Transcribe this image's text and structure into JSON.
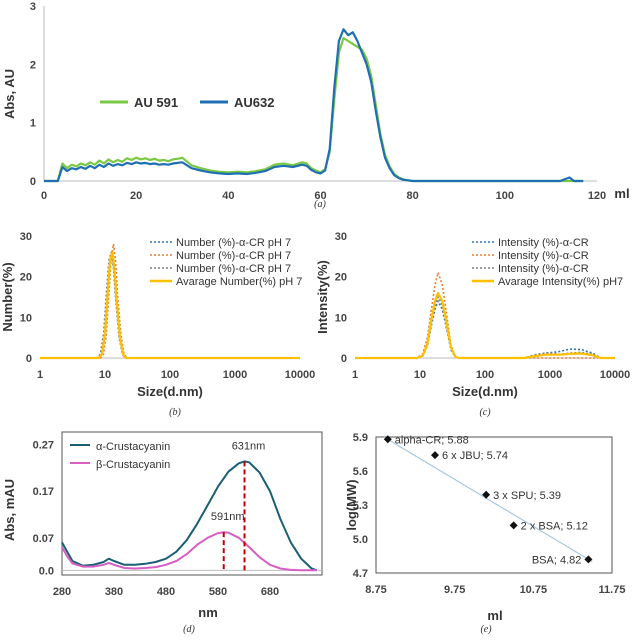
{
  "chart_data": [
    {
      "panel": "a",
      "type": "line",
      "caption": "(a)",
      "ylabel": "Abs, AU",
      "xlabel": "ml",
      "xlim": [
        0,
        120
      ],
      "ylim": [
        0,
        3
      ],
      "xticks": [
        "0",
        "20",
        "40",
        "60",
        "80",
        "100",
        "120"
      ],
      "yticks": [
        "0",
        "1",
        "2",
        "3"
      ],
      "legend": "upper-left",
      "series": [
        {
          "name": "AU 591",
          "color": "#7ac943",
          "x": [
            0,
            3,
            4,
            5,
            6,
            7,
            8,
            9,
            10,
            11,
            12,
            13,
            14,
            15,
            16,
            17,
            18,
            19,
            20,
            21,
            22,
            23,
            24,
            25,
            26,
            27,
            28,
            29,
            30,
            32,
            34,
            36,
            38,
            40,
            42,
            44,
            46,
            48,
            50,
            52,
            54,
            56,
            57,
            58,
            59,
            60,
            61,
            62,
            63,
            64,
            65,
            66,
            67,
            68,
            69,
            70,
            71,
            72,
            73,
            74,
            75,
            76,
            77,
            78,
            79,
            80,
            85,
            90,
            95,
            100,
            105,
            110,
            112,
            115,
            117
          ],
          "y": [
            0.0,
            0.0,
            0.3,
            0.22,
            0.28,
            0.25,
            0.3,
            0.27,
            0.32,
            0.28,
            0.35,
            0.3,
            0.37,
            0.32,
            0.36,
            0.33,
            0.39,
            0.36,
            0.4,
            0.37,
            0.39,
            0.36,
            0.38,
            0.35,
            0.36,
            0.34,
            0.37,
            0.38,
            0.4,
            0.27,
            0.22,
            0.18,
            0.16,
            0.15,
            0.16,
            0.15,
            0.17,
            0.2,
            0.28,
            0.3,
            0.27,
            0.32,
            0.3,
            0.22,
            0.18,
            0.15,
            0.2,
            0.5,
            1.4,
            2.2,
            2.45,
            2.4,
            2.35,
            2.3,
            2.25,
            2.1,
            1.8,
            1.3,
            0.8,
            0.45,
            0.25,
            0.12,
            0.06,
            0.03,
            0.01,
            0.0,
            0.0,
            0.0,
            0.0,
            0.0,
            0.0,
            0.0,
            0.0,
            0.0,
            0.0
          ]
        },
        {
          "name": "AU632",
          "color": "#1f6fb2",
          "x": [
            0,
            3,
            4,
            5,
            6,
            7,
            8,
            9,
            10,
            11,
            12,
            13,
            14,
            15,
            16,
            17,
            18,
            19,
            20,
            21,
            22,
            23,
            24,
            25,
            26,
            27,
            28,
            29,
            30,
            32,
            34,
            36,
            38,
            40,
            42,
            44,
            46,
            48,
            50,
            52,
            54,
            56,
            57,
            58,
            59,
            60,
            61,
            62,
            63,
            64,
            65,
            66,
            67,
            68,
            69,
            70,
            71,
            72,
            73,
            74,
            75,
            76,
            77,
            78,
            79,
            80,
            85,
            90,
            95,
            100,
            105,
            110,
            112,
            114,
            115,
            117
          ],
          "y": [
            0.0,
            0.0,
            0.24,
            0.17,
            0.22,
            0.2,
            0.24,
            0.21,
            0.26,
            0.22,
            0.28,
            0.24,
            0.3,
            0.26,
            0.29,
            0.27,
            0.31,
            0.29,
            0.32,
            0.3,
            0.31,
            0.29,
            0.3,
            0.28,
            0.29,
            0.28,
            0.3,
            0.31,
            0.32,
            0.22,
            0.18,
            0.15,
            0.13,
            0.12,
            0.13,
            0.12,
            0.14,
            0.17,
            0.24,
            0.26,
            0.24,
            0.28,
            0.26,
            0.19,
            0.15,
            0.13,
            0.18,
            0.55,
            1.6,
            2.4,
            2.6,
            2.5,
            2.55,
            2.4,
            2.2,
            2.0,
            1.7,
            1.2,
            0.75,
            0.4,
            0.22,
            0.1,
            0.05,
            0.02,
            0.01,
            0.0,
            0.0,
            0.0,
            0.0,
            0.0,
            0.0,
            0.0,
            0.0,
            0.06,
            0.0,
            0.0
          ]
        }
      ]
    },
    {
      "panel": "b",
      "type": "line",
      "caption": "(b)",
      "ylabel": "Number(%)",
      "xlabel": "Size(d.nm)",
      "xscale": "log",
      "xlim": [
        1,
        10000
      ],
      "ylim": [
        0,
        30
      ],
      "xticks": [
        "1",
        "10",
        "100",
        "1000",
        "10000"
      ],
      "yticks": [
        "0",
        "10",
        "20",
        "30"
      ],
      "legend": "top-right",
      "series": [
        {
          "name": "Number (%)-α-CR pH 7",
          "color": "#2e75b6",
          "dash": true,
          "x": [
            1,
            8,
            9,
            10,
            11,
            12,
            13,
            14,
            15,
            17,
            19,
            21,
            10000
          ],
          "y": [
            0,
            0,
            1,
            6,
            16,
            24,
            25,
            21,
            14,
            5,
            1,
            0,
            0
          ]
        },
        {
          "name": "Number (%)-α-CR pH 7",
          "color": "#ed7d31",
          "dash": true,
          "x": [
            1,
            8.5,
            9.5,
            10.5,
            11.5,
            12.5,
            13.5,
            14.5,
            15.5,
            17.5,
            19.5,
            22,
            10000
          ],
          "y": [
            0,
            0,
            1,
            6,
            16,
            25,
            28,
            24,
            16,
            6,
            1,
            0,
            0
          ]
        },
        {
          "name": "Number (%)-α-CR pH 7",
          "color": "#7f7f7f",
          "dash": true,
          "x": [
            1,
            7.5,
            8.5,
            9.5,
            10.5,
            11.5,
            12.5,
            13.5,
            14.5,
            16.5,
            18.5,
            20,
            10000
          ],
          "y": [
            0,
            0,
            1,
            6,
            16,
            24,
            26,
            22,
            15,
            5,
            1,
            0,
            0
          ]
        },
        {
          "name": "Avarage Number(%) pH 7",
          "color": "#ffc000",
          "dash": false,
          "x": [
            1,
            8,
            9,
            10,
            11,
            12,
            13,
            14,
            15,
            17,
            19,
            21,
            10000
          ],
          "y": [
            0,
            0,
            1,
            6,
            16,
            24,
            26,
            22,
            15,
            5,
            1,
            0,
            0
          ]
        }
      ]
    },
    {
      "panel": "c",
      "type": "line",
      "caption": "(c)",
      "ylabel": "Intensity(%)",
      "xlabel": "Size(d.nm)",
      "xscale": "log",
      "xlim": [
        1,
        10000
      ],
      "ylim": [
        0,
        30
      ],
      "xticks": [
        "1",
        "10",
        "100",
        "1000",
        "10000"
      ],
      "yticks": [
        "0",
        "10",
        "20",
        "30"
      ],
      "legend": "top-right",
      "series": [
        {
          "name": "Intensity (%)-α-CR",
          "color": "#2e75b6",
          "dash": true,
          "x": [
            1,
            9,
            11,
            13,
            15,
            17,
            19,
            22,
            25,
            30,
            35,
            40,
            400,
            600,
            900,
            1400,
            2000,
            3000,
            4500,
            6000,
            10000
          ],
          "y": [
            0,
            0,
            0.5,
            3,
            8,
            12,
            14,
            12,
            8,
            2,
            0.3,
            0,
            0,
            0.8,
            1.2,
            1.6,
            2.2,
            2.1,
            1.2,
            0,
            0
          ]
        },
        {
          "name": "Intensity (%)-α-CR",
          "color": "#ed7d31",
          "dash": true,
          "x": [
            1,
            9,
            11,
            13,
            15,
            17,
            19,
            22,
            25,
            30,
            35,
            40,
            10000
          ],
          "y": [
            0,
            0,
            1,
            5,
            12,
            18,
            21,
            18,
            12,
            3,
            0.4,
            0,
            0
          ]
        },
        {
          "name": "Intensity (%)-α-CR",
          "color": "#7f7f7f",
          "dash": true,
          "x": [
            1,
            9,
            11,
            13,
            15,
            17,
            19,
            22,
            25,
            30,
            35,
            40,
            400,
            600,
            900,
            1400,
            2000,
            3000,
            4500,
            6000,
            10000
          ],
          "y": [
            0,
            0,
            0.5,
            3,
            9,
            13,
            15,
            13,
            9,
            2.5,
            0.3,
            0,
            0,
            0.8,
            1.3,
            0.9,
            1.2,
            1.4,
            0.9,
            0,
            0
          ]
        },
        {
          "name": "Avarage Intensity(%) pH7",
          "color": "#ffc000",
          "dash": false,
          "x": [
            1,
            9,
            11,
            13,
            15,
            17,
            19,
            22,
            25,
            30,
            35,
            40,
            400,
            600,
            900,
            1400,
            2000,
            3000,
            4500,
            6000,
            10000
          ],
          "y": [
            0,
            0,
            0.6,
            3.5,
            9.5,
            14,
            16,
            14,
            9.5,
            2.5,
            0.3,
            0,
            0,
            0.5,
            0.8,
            0.8,
            1.0,
            1.1,
            0.7,
            0,
            0
          ]
        }
      ]
    },
    {
      "panel": "d",
      "type": "line",
      "caption": "(d)",
      "ylabel": "Abs, mAU",
      "xlabel": "nm",
      "xlim": [
        280,
        780
      ],
      "ylim": [
        -0.01,
        0.28
      ],
      "xticks": [
        "280",
        "380",
        "480",
        "580",
        "680"
      ],
      "yticks": [
        "0.0",
        "0.07",
        "0.17",
        "0.27"
      ],
      "legend": "top-left",
      "annotations": [
        {
          "text": "631nm",
          "x": 631,
          "y": 0.234
        },
        {
          "text": "591nm",
          "x": 591,
          "y": 0.082
        }
      ],
      "series": [
        {
          "name": "α-Crustacyanin",
          "color": "#1b5f73",
          "x": [
            280,
            290,
            300,
            320,
            340,
            360,
            370,
            380,
            400,
            420,
            440,
            460,
            480,
            500,
            520,
            540,
            560,
            580,
            600,
            620,
            631,
            640,
            660,
            680,
            700,
            720,
            740,
            760,
            770
          ],
          "y": [
            0.06,
            0.04,
            0.02,
            0.01,
            0.012,
            0.018,
            0.025,
            0.02,
            0.012,
            0.012,
            0.014,
            0.018,
            0.025,
            0.04,
            0.065,
            0.1,
            0.14,
            0.18,
            0.212,
            0.23,
            0.234,
            0.232,
            0.21,
            0.17,
            0.11,
            0.06,
            0.025,
            0.004,
            0.0
          ]
        },
        {
          "name": "β-Crustacyanin",
          "color": "#d65fc4",
          "x": [
            280,
            290,
            300,
            320,
            340,
            360,
            370,
            380,
            400,
            420,
            440,
            460,
            480,
            500,
            520,
            540,
            560,
            580,
            591,
            600,
            620,
            640,
            660,
            680,
            700,
            720,
            740,
            760,
            770
          ],
          "y": [
            0.05,
            0.03,
            0.015,
            0.008,
            0.008,
            0.012,
            0.016,
            0.012,
            0.005,
            0.004,
            0.005,
            0.007,
            0.012,
            0.02,
            0.035,
            0.055,
            0.07,
            0.08,
            0.082,
            0.081,
            0.07,
            0.05,
            0.028,
            0.012,
            0.004,
            0.001,
            0.0,
            0.0,
            0.0
          ]
        }
      ]
    },
    {
      "panel": "e",
      "type": "scatter",
      "caption": "(e)",
      "ylabel": "log(MW)",
      "xlabel": "ml",
      "xlim": [
        8.75,
        11.75
      ],
      "ylim": [
        4.7,
        5.9
      ],
      "xticks": [
        "8.75",
        "9.75",
        "10.75",
        "11.75"
      ],
      "yticks": [
        "4.7",
        "5.0",
        "5.3",
        "5.6",
        "5.9"
      ],
      "points": [
        {
          "label": "alpha-CR; 5.88",
          "x": 8.9,
          "y": 5.88
        },
        {
          "label": "6 x JBU; 5.74",
          "x": 9.5,
          "y": 5.74
        },
        {
          "label": "3 x SPU; 5.39",
          "x": 10.15,
          "y": 5.39
        },
        {
          "label": "2 x BSA; 5.12",
          "x": 10.5,
          "y": 5.12
        },
        {
          "label": "BSA; 4.82",
          "x": 11.45,
          "y": 4.82
        }
      ],
      "trendline": {
        "x": [
          8.85,
          11.5
        ],
        "y": [
          5.9,
          4.8
        ],
        "color": "#a9c8dc"
      }
    }
  ]
}
